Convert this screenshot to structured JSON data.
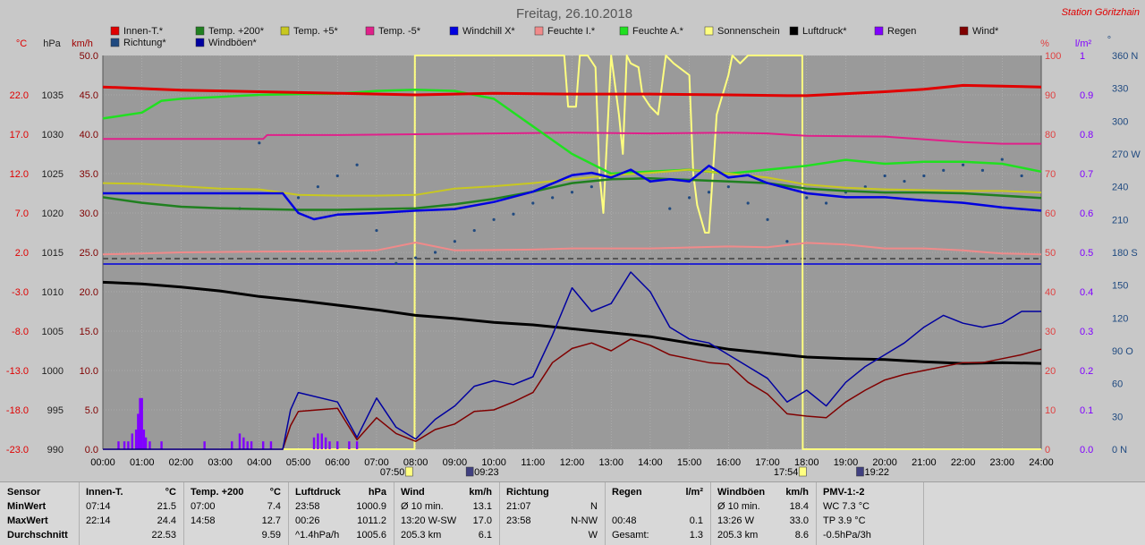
{
  "title": "Freitag, 26.10.2018",
  "station": "Station Göritzhain",
  "unit_labels": {
    "celsius": "°C",
    "hpa": "hPa",
    "kmh": "km/h",
    "percent": "%",
    "lm2": "l/m²",
    "degree": "°"
  },
  "colors": {
    "plot_bg": "#9a9a9a",
    "page_bg": "#c8c8c8",
    "innen": "#e00000",
    "plus200": "#208020",
    "plus5": "#c8c820",
    "minus5": "#e0208a",
    "windchill": "#0000e0",
    "feuchteI": "#f08a8a",
    "feuchteA": "#20e020",
    "sonne": "#ffff80",
    "luftdruck": "#000000",
    "regen": "#8000ff",
    "wind": "#800000",
    "richtung": "#204a80",
    "windboen": "#0000a0"
  },
  "legend": [
    {
      "label": "Innen-T.*",
      "color": "#e00000"
    },
    {
      "label": "Temp. +200*",
      "color": "#208020"
    },
    {
      "label": "Temp. +5*",
      "color": "#c8c820"
    },
    {
      "label": "Temp. -5*",
      "color": "#e0208a"
    },
    {
      "label": "Windchill X*",
      "color": "#0000e0"
    },
    {
      "label": "Feuchte I.*",
      "color": "#f08a8a"
    },
    {
      "label": "Feuchte A.*",
      "color": "#20e020"
    },
    {
      "label": "Sonnenschein",
      "color": "#ffff80"
    },
    {
      "label": "Luftdruck*",
      "color": "#000000"
    },
    {
      "label": "Regen",
      "color": "#8000ff"
    },
    {
      "label": "Wind*",
      "color": "#800000"
    },
    {
      "label": "Richtung*",
      "color": "#204a80"
    },
    {
      "label": "Windböen*",
      "color": "#0000a0"
    }
  ],
  "chart_data": {
    "type": "line",
    "title": "Freitag, 26.10.2018",
    "x_labels": [
      "00:00",
      "01:00",
      "02:00",
      "03:00",
      "04:00",
      "05:00",
      "06:00",
      "07:00",
      "08:00",
      "09:00",
      "10:00",
      "11:00",
      "12:00",
      "13:00",
      "14:00",
      "15:00",
      "16:00",
      "17:00",
      "18:00",
      "19:00",
      "20:00",
      "21:00",
      "22:00",
      "23:00",
      "24:00"
    ],
    "axes": {
      "temp_c": {
        "ticks": [
          "22.0",
          "17.0",
          "12.0",
          "7.0",
          "2.0",
          "-3.0",
          "-8.0",
          "-13.0",
          "-18.0",
          "-23.0"
        ]
      },
      "pressure_hpa": {
        "ticks": [
          "1035",
          "1030",
          "1025",
          "1020",
          "1015",
          "1010",
          "1005",
          "1000",
          "995",
          "990"
        ]
      },
      "wind_kmh": {
        "ticks": [
          "50.0",
          "45.0",
          "40.0",
          "35.0",
          "30.0",
          "25.0",
          "20.0",
          "15.0",
          "10.0",
          "5.0",
          "0.0"
        ],
        "range": [
          0,
          50
        ]
      },
      "percent": {
        "ticks": [
          "100",
          "90",
          "80",
          "70",
          "60",
          "50",
          "40",
          "30",
          "20",
          "10",
          "0"
        ],
        "range": [
          0,
          100
        ]
      },
      "rain_lm2": {
        "ticks": [
          "1",
          "0.9",
          "0.8",
          "0.7",
          "0.6",
          "0.5",
          "0.4",
          "0.3",
          "0.2",
          "0.1",
          "0.0"
        ],
        "range": [
          0,
          1
        ]
      },
      "direction_deg": {
        "ticks": [
          "360 N",
          "330",
          "300",
          "270 W",
          "240",
          "210",
          "180 S",
          "150",
          "120",
          "90 O",
          "60",
          "30",
          "0 N"
        ],
        "range": [
          0,
          360
        ]
      }
    },
    "sun_events": [
      {
        "time": "07:50",
        "kind": "sunrise"
      },
      {
        "time": "09:23",
        "kind": "moonset"
      },
      {
        "time": "17:54",
        "kind": "sunset"
      },
      {
        "time": "19:22",
        "kind": "moonrise"
      }
    ],
    "series": [
      {
        "name": "Innen-T.*",
        "axis": "temp_c",
        "x": [
          0,
          2,
          4,
          6,
          8,
          10,
          12,
          14,
          16,
          17.5,
          18,
          20,
          21,
          22,
          23,
          24
        ],
        "values": [
          23.0,
          22.6,
          22.4,
          22.2,
          22.0,
          22.2,
          22.1,
          22.1,
          22.0,
          21.9,
          21.9,
          22.4,
          22.7,
          23.2,
          23.1,
          23.0
        ]
      },
      {
        "name": "Temp. +200*",
        "axis": "temp_c",
        "x": [
          0,
          1,
          2,
          3,
          4,
          5,
          6,
          7,
          8,
          9,
          10,
          11,
          12,
          13,
          14,
          15,
          16,
          17,
          18,
          19,
          20,
          21,
          22,
          23,
          24
        ],
        "values": [
          9.0,
          8.3,
          7.8,
          7.6,
          7.5,
          7.4,
          7.4,
          7.5,
          7.6,
          8.1,
          8.8,
          9.7,
          10.8,
          11.3,
          11.4,
          11.2,
          11.0,
          10.8,
          10.1,
          9.8,
          9.6,
          9.6,
          9.5,
          9.2,
          8.9
        ]
      },
      {
        "name": "Temp. +5*",
        "axis": "temp_c",
        "x": [
          0,
          1,
          2,
          3,
          4,
          5,
          6,
          7,
          8,
          9,
          10,
          11,
          12,
          13,
          14,
          15,
          16,
          17,
          18,
          19,
          20,
          21,
          22,
          23,
          24
        ],
        "values": [
          10.8,
          10.7,
          10.4,
          10.1,
          10.0,
          9.3,
          9.2,
          9.2,
          9.3,
          10.1,
          10.4,
          10.8,
          11.3,
          11.8,
          12.1,
          12.5,
          12.0,
          11.5,
          10.6,
          10.2,
          10.0,
          9.9,
          9.8,
          9.8,
          9.6
        ]
      },
      {
        "name": "Temp. -5*",
        "axis": "temp_c",
        "x": [
          0,
          3,
          4.1,
          4.2,
          6,
          8,
          10,
          12,
          14,
          16,
          17,
          18,
          20,
          22,
          23,
          24
        ],
        "values": [
          16.4,
          16.4,
          16.4,
          16.9,
          16.9,
          17.0,
          17.1,
          17.2,
          17.1,
          17.2,
          17.1,
          16.8,
          16.7,
          16.0,
          15.8,
          15.8
        ]
      },
      {
        "name": "Windchill X*",
        "axis": "temp_c",
        "x": [
          0,
          1,
          2,
          3,
          4,
          4.6,
          5,
          5.4,
          6,
          7,
          8,
          9,
          10,
          11,
          12,
          12.5,
          13,
          13.5,
          14,
          14.5,
          15,
          15.5,
          16,
          16.5,
          17,
          18,
          19,
          20,
          21,
          22,
          23,
          24
        ],
        "values": [
          9.5,
          9.5,
          9.5,
          9.5,
          9.5,
          9.5,
          7.0,
          6.2,
          6.8,
          7.0,
          7.3,
          7.5,
          8.4,
          9.7,
          11.8,
          12.1,
          11.5,
          12.5,
          11.0,
          11.3,
          11.0,
          13.0,
          11.5,
          11.8,
          10.8,
          9.5,
          9.0,
          9.0,
          8.6,
          8.3,
          7.7,
          7.3
        ]
      },
      {
        "name": "Feuchte I.*",
        "axis": "percent",
        "x": [
          0,
          1,
          2,
          4,
          6,
          7,
          8,
          9,
          10,
          11,
          12,
          14,
          16,
          17,
          18,
          19,
          20,
          21,
          22,
          22.5,
          23,
          24
        ],
        "values": [
          49.5,
          49.7,
          50.0,
          50.2,
          50.3,
          50.5,
          52.5,
          50.5,
          50.6,
          50.7,
          51.0,
          51.0,
          51.5,
          51.3,
          52.4,
          52.0,
          51.0,
          51.0,
          50.5,
          50.1,
          49.7,
          49.5
        ]
      },
      {
        "name": "Feuchte A.*",
        "axis": "percent",
        "x": [
          0,
          1,
          1.5,
          2,
          3,
          4,
          5,
          6,
          7,
          8,
          9,
          10,
          11,
          12,
          13,
          14,
          15,
          16,
          17,
          18,
          19,
          20,
          21,
          22,
          23,
          24
        ],
        "values": [
          84.0,
          85.5,
          88.5,
          89.0,
          89.5,
          90.0,
          90.2,
          90.3,
          91.0,
          91.3,
          91.0,
          89.0,
          82.0,
          75.0,
          70.0,
          70.5,
          71.0,
          70.0,
          71.0,
          72.0,
          73.5,
          72.5,
          73.0,
          73.0,
          72.5,
          70.5
        ]
      },
      {
        "name": "Luftdruck*",
        "axis": "pressure_hpa",
        "x": [
          0,
          1,
          2,
          3,
          4,
          5,
          6,
          7,
          8,
          9,
          10,
          11,
          12,
          13,
          14,
          15,
          16,
          17,
          18,
          19,
          20,
          21,
          22,
          23,
          24
        ],
        "values": [
          1011.2,
          1011.0,
          1010.6,
          1010.1,
          1009.4,
          1008.9,
          1008.3,
          1007.7,
          1007.0,
          1006.6,
          1006.1,
          1005.8,
          1005.3,
          1004.8,
          1004.3,
          1003.5,
          1002.7,
          1002.2,
          1001.7,
          1001.5,
          1001.4,
          1001.1,
          1000.9,
          1001.0,
          1000.9
        ]
      },
      {
        "name": "Wind*",
        "axis": "wind_kmh",
        "x": [
          0,
          4.6,
          4.8,
          5,
          6,
          6.5,
          7,
          7.5,
          8,
          8.5,
          9,
          9.5,
          10,
          10.5,
          11,
          11.5,
          12,
          12.5,
          13,
          13.5,
          14,
          14.5,
          15,
          15.5,
          16,
          16.5,
          17,
          17.5,
          18,
          18.5,
          19,
          19.5,
          20,
          20.5,
          21,
          21.5,
          22,
          22.5,
          23,
          23.5,
          24
        ],
        "values": [
          0,
          0,
          3.0,
          4.8,
          5.2,
          1.2,
          4.0,
          2.0,
          1.0,
          2.5,
          3.2,
          4.8,
          5.0,
          6.0,
          7.2,
          11.0,
          12.8,
          13.5,
          12.5,
          14.0,
          13.2,
          12.0,
          11.5,
          11.0,
          10.8,
          8.5,
          7.0,
          4.5,
          4.2,
          4.0,
          6.0,
          7.5,
          8.8,
          9.5,
          10.0,
          10.5,
          11.0,
          11.0,
          11.5,
          12.0,
          12.7
        ]
      },
      {
        "name": "Windböen*",
        "axis": "wind_kmh",
        "x": [
          0,
          4.6,
          4.8,
          5,
          6,
          6.5,
          7,
          7.5,
          8,
          8.5,
          9,
          9.5,
          10,
          10.5,
          11,
          11.5,
          12,
          12.5,
          13,
          13.5,
          14,
          14.5,
          15,
          15.5,
          16,
          16.5,
          17,
          17.5,
          18,
          18.5,
          19,
          19.5,
          20,
          20.5,
          21,
          21.5,
          22,
          22.5,
          23,
          23.5,
          24
        ],
        "values": [
          0,
          0,
          5.0,
          7.2,
          6.0,
          1.5,
          6.5,
          2.8,
          1.3,
          3.8,
          5.5,
          8.0,
          8.7,
          8.2,
          9.2,
          14.5,
          20.5,
          17.5,
          18.5,
          22.5,
          20.0,
          15.5,
          14.0,
          13.5,
          12.0,
          10.5,
          9.0,
          6.0,
          7.5,
          5.5,
          8.5,
          10.5,
          12.0,
          13.5,
          15.5,
          17.0,
          16.0,
          15.5,
          16.0,
          17.5,
          17.5
        ]
      },
      {
        "name": "Richtung*",
        "axis": "direction_deg",
        "x": [
          3.5,
          4,
          5,
          5.5,
          6,
          6.5,
          7,
          7.5,
          8,
          8.5,
          9,
          9.5,
          10,
          10.5,
          11,
          11.5,
          12,
          12.5,
          13,
          13.5,
          14,
          14.5,
          15,
          15.5,
          16,
          16.5,
          17,
          17.5,
          18,
          18.5,
          19,
          19.5,
          20,
          20.5,
          21,
          21.5,
          22,
          22.5,
          23,
          23.5
        ],
        "values": [
          220,
          280,
          230,
          240,
          250,
          260,
          200,
          170,
          175,
          180,
          190,
          200,
          210,
          215,
          225,
          230,
          235,
          240,
          250,
          255,
          245,
          220,
          230,
          235,
          240,
          225,
          210,
          190,
          230,
          225,
          235,
          240,
          250,
          245,
          250,
          255,
          260,
          255,
          265,
          250
        ]
      },
      {
        "name": "Regen",
        "axis": "rain_lm2",
        "x": [
          0.4,
          0.55,
          0.65,
          0.75,
          0.85,
          0.9,
          0.95,
          1.0,
          1.05,
          1.1,
          1.2,
          1.5,
          2.6,
          3.3,
          3.5,
          3.6,
          3.7,
          3.8,
          4.1,
          4.3,
          5.4,
          5.5,
          5.6,
          5.7,
          5.8,
          6.0,
          6.3,
          6.5
        ],
        "values": [
          0.02,
          0.02,
          0.02,
          0.04,
          0.05,
          0.09,
          0.13,
          0.13,
          0.05,
          0.03,
          0.02,
          0.02,
          0.02,
          0.02,
          0.04,
          0.03,
          0.02,
          0.02,
          0.02,
          0.02,
          0.03,
          0.04,
          0.04,
          0.03,
          0.02,
          0.02,
          0.02,
          0.02
        ]
      },
      {
        "name": "Sonnenschein",
        "axis": "percent",
        "x": [
          0,
          7.97,
          7.98,
          11.8,
          11.9,
          12.1,
          12.2,
          12.4,
          12.6,
          12.7,
          12.8,
          13.0,
          13.2,
          13.3,
          13.4,
          13.5,
          13.7,
          13.8,
          14.0,
          14.2,
          14.4,
          14.6,
          15.0,
          15.1,
          15.2,
          15.4,
          15.5,
          15.6,
          15.7,
          16.0,
          16.1,
          16.3,
          16.5,
          17.0,
          17.89,
          17.9,
          24
        ],
        "values": [
          0,
          0,
          100,
          100,
          87,
          87,
          100,
          100,
          97,
          70,
          60,
          100,
          85,
          75,
          100,
          98,
          97,
          90,
          87,
          85,
          100,
          98,
          95,
          70,
          62,
          55,
          55,
          70,
          85,
          95,
          100,
          98,
          100,
          100,
          100,
          0,
          0
        ]
      }
    ]
  },
  "table": {
    "columns": [
      {
        "title": "Sensor",
        "rows": [
          "MinWert",
          "MaxWert",
          "Durchschnitt"
        ]
      },
      {
        "title": "Innen-T.",
        "unit": "°C",
        "rows": [
          [
            "07:14",
            "21.5"
          ],
          [
            "22:14",
            "24.4"
          ],
          [
            "",
            "22.53"
          ]
        ]
      },
      {
        "title": "Temp. +200",
        "unit": "°C",
        "rows": [
          [
            "07:00",
            "7.4"
          ],
          [
            "14:58",
            "12.7"
          ],
          [
            "",
            "9.59"
          ]
        ]
      },
      {
        "title": "Luftdruck",
        "unit": "hPa",
        "rows": [
          [
            "23:58",
            "1000.9"
          ],
          [
            "00:26",
            "1011.2"
          ],
          [
            "^1.4hPa/h",
            "1005.6"
          ]
        ]
      },
      {
        "title": "Wind",
        "unit": "km/h",
        "rows": [
          [
            "Ø 10 min.",
            "13.1"
          ],
          [
            "13:20    W-SW",
            "17.0"
          ],
          [
            "205.3 km",
            "6.1"
          ]
        ]
      },
      {
        "title": "Richtung",
        "unit": "",
        "rows": [
          [
            "21:07",
            "N"
          ],
          [
            "23:58",
            "N-NW"
          ],
          [
            "",
            "W"
          ]
        ]
      },
      {
        "title": "Regen",
        "unit": "l/m²",
        "rows": [
          [
            "",
            ""
          ],
          [
            "00:48",
            "0.1"
          ],
          [
            "Gesamt:",
            "1.3"
          ]
        ]
      },
      {
        "title": "Windböen",
        "unit": "km/h",
        "rows": [
          [
            "Ø 10 min.",
            "18.4"
          ],
          [
            "13:26    W",
            "33.0"
          ],
          [
            "205.3 km",
            "8.6"
          ]
        ]
      },
      {
        "title": "PMV-1:-2",
        "unit": "",
        "rows": [
          [
            "WC 7.3 °C",
            ""
          ],
          [
            "TP 3.9 °C",
            ""
          ],
          [
            "-0.5hPa/3h",
            ""
          ]
        ]
      }
    ]
  }
}
